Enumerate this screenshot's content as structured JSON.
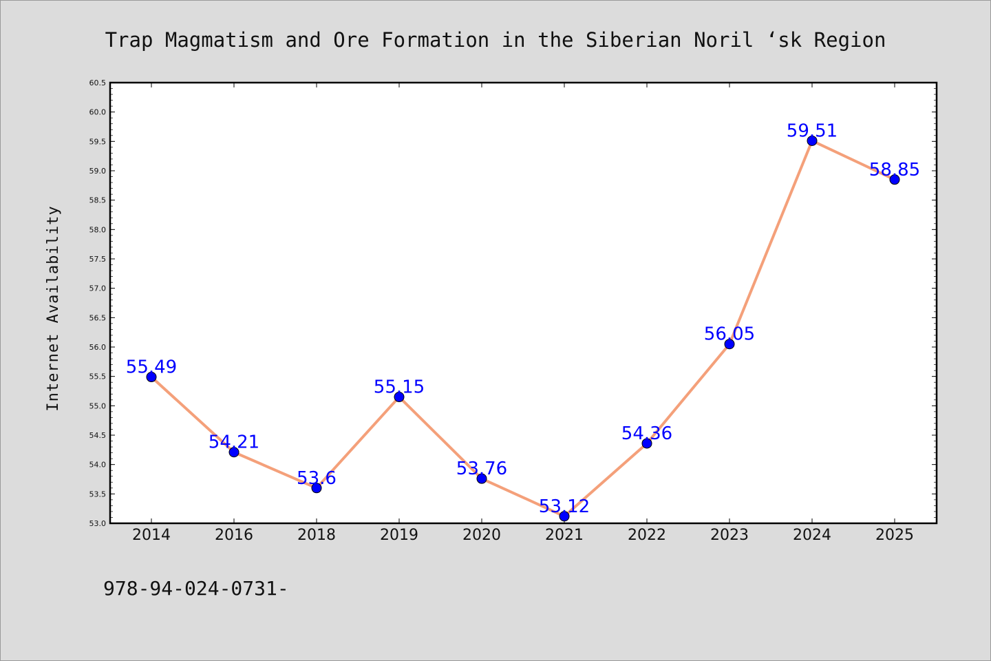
{
  "chart_data": {
    "type": "line",
    "title": "Trap Magmatism and Ore Formation in the Siberian Noril ‘sk Region",
    "ylabel": "Internet Availability",
    "xlabel": "",
    "categories": [
      "2014",
      "2016",
      "2018",
      "2019",
      "2020",
      "2021",
      "2022",
      "2023",
      "2024",
      "2025"
    ],
    "series": [
      {
        "values": [
          55.49,
          54.21,
          53.6,
          55.15,
          53.76,
          53.12,
          54.36,
          56.05,
          59.51,
          58.85
        ],
        "data_labels": [
          "55.49",
          "54.21",
          "53.6",
          "55.15",
          "53.76",
          "53.12",
          "54.36",
          "56.05",
          "59.51",
          "58.85"
        ]
      }
    ],
    "ylim": [
      53.0,
      60.5
    ],
    "yticks": [
      "53.0",
      "53.5",
      "54.0",
      "54.5",
      "55.0",
      "55.5",
      "56.0",
      "56.5",
      "57.0",
      "57.5",
      "58.0",
      "58.5",
      "59.0",
      "59.5",
      "60.0",
      "60.5"
    ],
    "grid": false,
    "line_color": "#f4a07a",
    "marker_color": "#0000ff",
    "label_color": "#0000ff"
  },
  "footer_text": "978-94-024-0731-"
}
